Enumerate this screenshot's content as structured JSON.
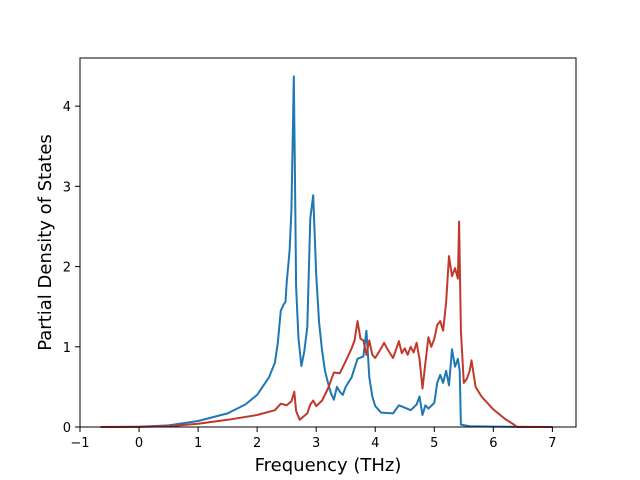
{
  "chart_data": {
    "type": "line",
    "title": "",
    "xlabel": "Frequency (THz)",
    "ylabel": "Partial Density of States",
    "xlim": [
      -1.0,
      7.4
    ],
    "ylim": [
      0,
      4.6
    ],
    "xticks": [
      -1,
      0,
      1,
      2,
      3,
      4,
      5,
      6,
      7
    ],
    "yticks": [
      0,
      1,
      2,
      3,
      4
    ],
    "xtick_labels": [
      "−1",
      "0",
      "1",
      "2",
      "3",
      "4",
      "5",
      "6",
      "7"
    ],
    "ytick_labels": [
      "0",
      "1",
      "2",
      "3",
      "4"
    ],
    "grid": false,
    "legend": "none",
    "series": [
      {
        "color": "#1f77b4",
        "points": [
          [
            -0.65,
            0.0
          ],
          [
            0.0,
            0.003
          ],
          [
            0.5,
            0.02
          ],
          [
            1.0,
            0.075
          ],
          [
            1.5,
            0.17
          ],
          [
            1.8,
            0.28
          ],
          [
            2.0,
            0.4
          ],
          [
            2.2,
            0.62
          ],
          [
            2.3,
            0.8
          ],
          [
            2.35,
            1.05
          ],
          [
            2.4,
            1.45
          ],
          [
            2.45,
            1.53
          ],
          [
            2.48,
            1.56
          ],
          [
            2.5,
            1.8
          ],
          [
            2.55,
            2.2
          ],
          [
            2.58,
            2.7
          ],
          [
            2.6,
            3.5
          ],
          [
            2.62,
            4.37
          ],
          [
            2.64,
            3.2
          ],
          [
            2.66,
            1.75
          ],
          [
            2.7,
            1.1
          ],
          [
            2.75,
            0.76
          ],
          [
            2.8,
            0.95
          ],
          [
            2.85,
            1.25
          ],
          [
            2.9,
            2.6
          ],
          [
            2.95,
            2.89
          ],
          [
            3.0,
            1.9
          ],
          [
            3.05,
            1.3
          ],
          [
            3.1,
            0.95
          ],
          [
            3.15,
            0.7
          ],
          [
            3.2,
            0.55
          ],
          [
            3.25,
            0.42
          ],
          [
            3.3,
            0.34
          ],
          [
            3.35,
            0.5
          ],
          [
            3.4,
            0.44
          ],
          [
            3.45,
            0.4
          ],
          [
            3.5,
            0.5
          ],
          [
            3.6,
            0.62
          ],
          [
            3.7,
            0.85
          ],
          [
            3.8,
            0.88
          ],
          [
            3.85,
            1.2
          ],
          [
            3.88,
            0.85
          ],
          [
            3.9,
            0.62
          ],
          [
            3.95,
            0.38
          ],
          [
            4.0,
            0.26
          ],
          [
            4.1,
            0.18
          ],
          [
            4.3,
            0.17
          ],
          [
            4.4,
            0.27
          ],
          [
            4.5,
            0.24
          ],
          [
            4.6,
            0.21
          ],
          [
            4.7,
            0.28
          ],
          [
            4.75,
            0.38
          ],
          [
            4.8,
            0.15
          ],
          [
            4.85,
            0.27
          ],
          [
            4.9,
            0.23
          ],
          [
            5.0,
            0.3
          ],
          [
            5.05,
            0.55
          ],
          [
            5.1,
            0.65
          ],
          [
            5.15,
            0.55
          ],
          [
            5.2,
            0.7
          ],
          [
            5.25,
            0.52
          ],
          [
            5.3,
            0.97
          ],
          [
            5.35,
            0.75
          ],
          [
            5.4,
            0.85
          ],
          [
            5.43,
            0.7
          ],
          [
            5.45,
            0.03
          ],
          [
            5.6,
            0.01
          ],
          [
            6.0,
            0.005
          ],
          [
            7.0,
            0.0
          ]
        ]
      },
      {
        "color": "#c0392b",
        "points": [
          [
            -0.65,
            0.0
          ],
          [
            0.0,
            0.001
          ],
          [
            0.5,
            0.01
          ],
          [
            1.0,
            0.04
          ],
          [
            1.5,
            0.09
          ],
          [
            2.0,
            0.15
          ],
          [
            2.3,
            0.21
          ],
          [
            2.4,
            0.29
          ],
          [
            2.5,
            0.27
          ],
          [
            2.58,
            0.32
          ],
          [
            2.63,
            0.44
          ],
          [
            2.66,
            0.2
          ],
          [
            2.72,
            0.09
          ],
          [
            2.8,
            0.14
          ],
          [
            2.85,
            0.17
          ],
          [
            2.9,
            0.28
          ],
          [
            2.95,
            0.33
          ],
          [
            3.0,
            0.26
          ],
          [
            3.1,
            0.33
          ],
          [
            3.2,
            0.48
          ],
          [
            3.3,
            0.68
          ],
          [
            3.4,
            0.67
          ],
          [
            3.5,
            0.82
          ],
          [
            3.6,
            0.98
          ],
          [
            3.65,
            1.08
          ],
          [
            3.7,
            1.32
          ],
          [
            3.75,
            1.1
          ],
          [
            3.8,
            1.08
          ],
          [
            3.85,
            0.9
          ],
          [
            3.9,
            1.08
          ],
          [
            3.95,
            0.9
          ],
          [
            4.0,
            0.86
          ],
          [
            4.1,
            0.98
          ],
          [
            4.15,
            1.05
          ],
          [
            4.2,
            0.98
          ],
          [
            4.3,
            0.86
          ],
          [
            4.35,
            0.96
          ],
          [
            4.4,
            1.07
          ],
          [
            4.45,
            0.92
          ],
          [
            4.5,
            0.98
          ],
          [
            4.55,
            0.9
          ],
          [
            4.6,
            1.0
          ],
          [
            4.65,
            0.93
          ],
          [
            4.7,
            1.05
          ],
          [
            4.75,
            0.85
          ],
          [
            4.8,
            0.48
          ],
          [
            4.85,
            0.8
          ],
          [
            4.9,
            1.12
          ],
          [
            4.95,
            1.0
          ],
          [
            5.0,
            1.1
          ],
          [
            5.05,
            1.27
          ],
          [
            5.1,
            1.32
          ],
          [
            5.15,
            1.2
          ],
          [
            5.2,
            1.55
          ],
          [
            5.25,
            2.13
          ],
          [
            5.3,
            1.88
          ],
          [
            5.35,
            1.98
          ],
          [
            5.4,
            1.85
          ],
          [
            5.42,
            2.56
          ],
          [
            5.45,
            1.2
          ],
          [
            5.5,
            0.55
          ],
          [
            5.55,
            0.6
          ],
          [
            5.6,
            0.7
          ],
          [
            5.63,
            0.83
          ],
          [
            5.7,
            0.5
          ],
          [
            5.8,
            0.38
          ],
          [
            6.0,
            0.22
          ],
          [
            6.2,
            0.1
          ],
          [
            6.35,
            0.03
          ],
          [
            6.4,
            0.0
          ],
          [
            7.0,
            0.0
          ]
        ]
      }
    ]
  }
}
